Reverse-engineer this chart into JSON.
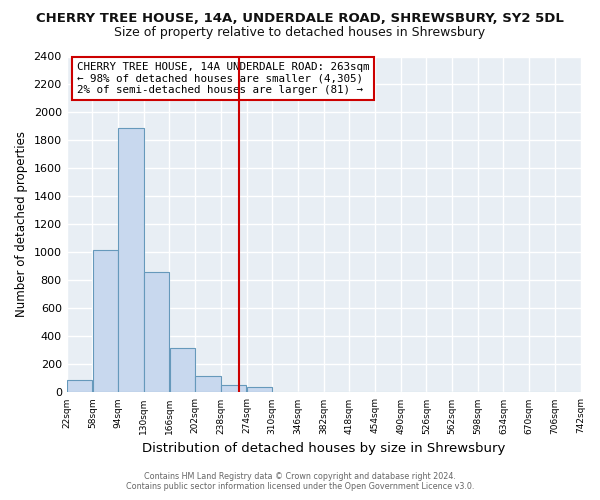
{
  "title": "CHERRY TREE HOUSE, 14A, UNDERDALE ROAD, SHREWSBURY, SY2 5DL",
  "subtitle": "Size of property relative to detached houses in Shrewsbury",
  "xlabel": "Distribution of detached houses by size in Shrewsbury",
  "ylabel": "Number of detached properties",
  "bar_edges": [
    22,
    58,
    94,
    130,
    166,
    202,
    238,
    274,
    310,
    346,
    382,
    418,
    454,
    490,
    526,
    562,
    598,
    634,
    670,
    706,
    742
  ],
  "bar_heights": [
    90,
    1020,
    1890,
    860,
    320,
    120,
    50,
    40,
    0,
    0,
    0,
    0,
    0,
    0,
    0,
    0,
    0,
    0,
    0,
    0
  ],
  "bar_color": "#c8d8ee",
  "bar_edge_color": "#6699bb",
  "vline_x": 263,
  "vline_color": "#cc0000",
  "ylim": [
    0,
    2400
  ],
  "yticks": [
    0,
    200,
    400,
    600,
    800,
    1000,
    1200,
    1400,
    1600,
    1800,
    2000,
    2200,
    2400
  ],
  "annotation_title": "CHERRY TREE HOUSE, 14A UNDERDALE ROAD: 263sqm",
  "annotation_line1": "← 98% of detached houses are smaller (4,305)",
  "annotation_line2": "2% of semi-detached houses are larger (81) →",
  "annotation_box_color": "#ffffff",
  "annotation_box_edge": "#cc0000",
  "footer1": "Contains HM Land Registry data © Crown copyright and database right 2024.",
  "footer2": "Contains public sector information licensed under the Open Government Licence v3.0.",
  "tick_labels": [
    "22sqm",
    "58sqm",
    "94sqm",
    "130sqm",
    "166sqm",
    "202sqm",
    "238sqm",
    "274sqm",
    "310sqm",
    "346sqm",
    "382sqm",
    "418sqm",
    "454sqm",
    "490sqm",
    "526sqm",
    "562sqm",
    "598sqm",
    "634sqm",
    "670sqm",
    "706sqm",
    "742sqm"
  ],
  "background_color": "#ffffff",
  "plot_bg_color": "#e8eef4",
  "grid_color": "#ffffff",
  "title_fontsize": 9.5,
  "subtitle_fontsize": 9.0
}
